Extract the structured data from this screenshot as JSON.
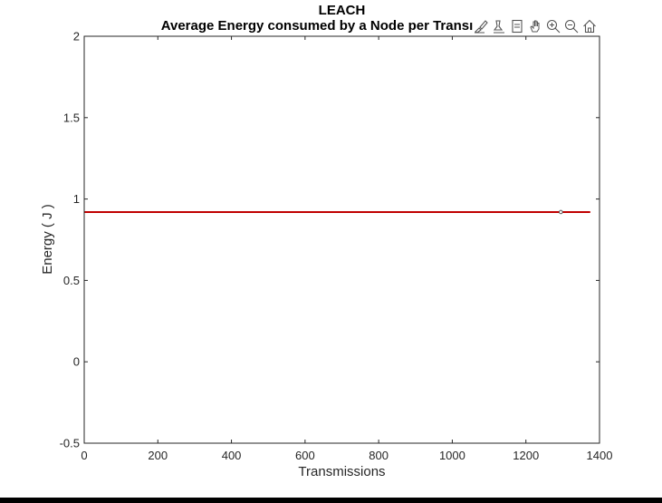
{
  "chart_data": {
    "type": "line",
    "title": "LEACH",
    "subtitle": "Average Energy consumed by a Node per Transı",
    "xlabel": "Transmissions",
    "ylabel": "Energy ( J )",
    "xlim": [
      0,
      1400
    ],
    "ylim": [
      -0.5,
      2
    ],
    "x_ticks": [
      0,
      200,
      400,
      600,
      800,
      1000,
      1200,
      1400
    ],
    "x_tick_labels": [
      "0",
      "200",
      "400",
      "600",
      "800",
      "1000",
      "1200",
      "1400"
    ],
    "y_ticks": [
      -0.5,
      0,
      0.5,
      1,
      1.5,
      2
    ],
    "y_tick_labels": [
      "-0.5",
      "0",
      "0.5",
      "1",
      "1.5",
      "2"
    ],
    "grid": false,
    "series": [
      {
        "color": "#c00000",
        "x": [
          0,
          1375
        ],
        "y": [
          0.92,
          0.92
        ]
      }
    ],
    "marker": {
      "x": 1295,
      "y": 0.92,
      "color": "#555555"
    }
  },
  "toolbar": {
    "buttons": [
      {
        "icon": "brush-icon"
      },
      {
        "icon": "data-tips-icon"
      },
      {
        "icon": "legend-icon"
      },
      {
        "icon": "pan-icon"
      },
      {
        "icon": "zoom-in-icon"
      },
      {
        "icon": "zoom-out-icon"
      },
      {
        "icon": "home-icon"
      }
    ]
  }
}
